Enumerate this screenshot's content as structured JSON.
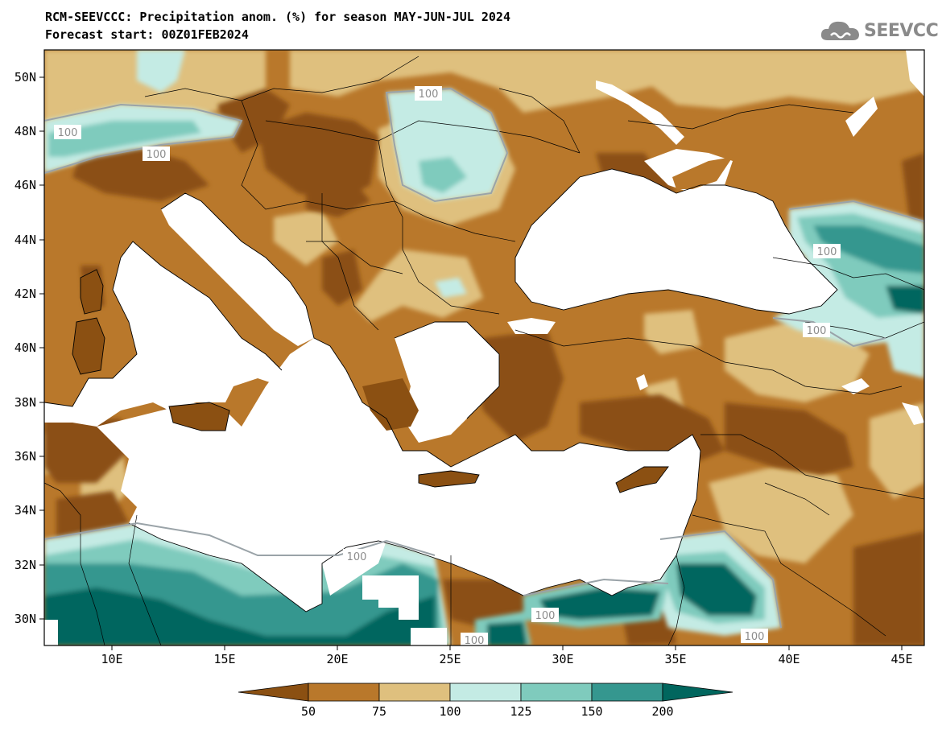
{
  "header": {
    "title": "RCM-SEEVCCC: Precipitation anom. (%) for season MAY-JUN-JUL 2024",
    "subtitle": "Forecast start: 00Z01FEB2024",
    "logo_text": "SEEVCCC",
    "logo_icon": "cloud-icon"
  },
  "map": {
    "region": "Balkans, Eastern Mediterranean, Black Sea and Anatolia",
    "lon_range": [
      7,
      46
    ],
    "lat_range": [
      29,
      51
    ],
    "lat_ticks": [
      "50N",
      "48N",
      "46N",
      "44N",
      "42N",
      "40N",
      "38N",
      "36N",
      "34N",
      "32N",
      "30N"
    ],
    "lon_ticks": [
      "10E",
      "15E",
      "20E",
      "25E",
      "30E",
      "35E",
      "40E",
      "45E"
    ],
    "contour_label": "100"
  },
  "colorbar": {
    "boundaries": [
      "50",
      "75",
      "100",
      "125",
      "150",
      "200"
    ],
    "colors": {
      "below_50": "#8b5012",
      "50_75": "#b9782b",
      "75_100": "#dfc07e",
      "100_125": "#c4ebe4",
      "125_150": "#7fcbbd",
      "150_200": "#35978f",
      "above_200": "#01665e"
    },
    "sea_color": "#ffffff"
  }
}
